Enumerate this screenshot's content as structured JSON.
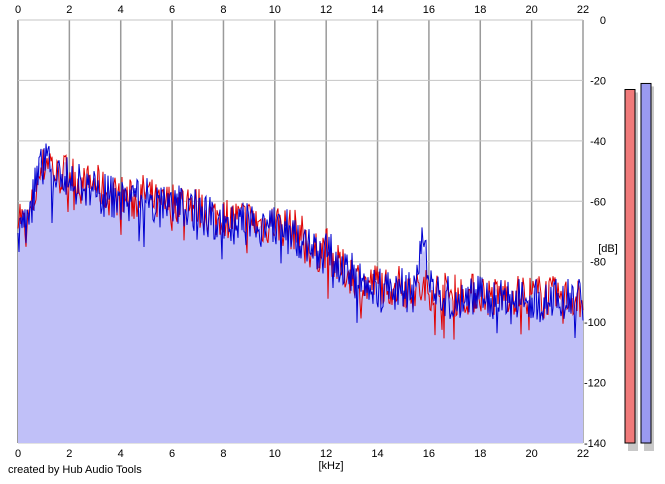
{
  "chart_data": {
    "type": "line",
    "title": "",
    "xlabel": "[kHz]",
    "ylabel": "[dB]",
    "x_ticks": [
      "0",
      "2",
      "4",
      "6",
      "8",
      "10",
      "12",
      "14",
      "16",
      "18",
      "20",
      "22"
    ],
    "y_ticks": [
      "0",
      "-20",
      "-40",
      "-60",
      "-80",
      "-100",
      "-120",
      "-140"
    ],
    "xlim": [
      0,
      22
    ],
    "ylim": [
      -140,
      0
    ],
    "grid": true,
    "legend": "none",
    "colors": {
      "fill": "#c0c0f8",
      "red_series": "#e00000",
      "blue_series": "#0000d0",
      "meter_left": "#f07a7a",
      "meter_right": "#9a9af0"
    },
    "series": [
      {
        "color": "red",
        "x": [
          0,
          0.3,
          0.6,
          0.9,
          1.2,
          1.5,
          2,
          2.5,
          3,
          3.5,
          4,
          4.5,
          5,
          5.5,
          6,
          6.5,
          7,
          7.5,
          8,
          8.5,
          9,
          9.5,
          10,
          10.5,
          11,
          11.5,
          12,
          12.5,
          13,
          13.5,
          14,
          14.5,
          15,
          15.5,
          16,
          16.5,
          17,
          17.5,
          18,
          18.5,
          19,
          19.5,
          20,
          20.5,
          21,
          21.5,
          22
        ],
        "y": [
          -62,
          -70,
          -60,
          -50,
          -45,
          -52,
          -50,
          -55,
          -54,
          -58,
          -58,
          -60,
          -57,
          -62,
          -60,
          -60,
          -62,
          -65,
          -65,
          -66,
          -66,
          -68,
          -67,
          -69,
          -70,
          -78,
          -75,
          -82,
          -84,
          -88,
          -87,
          -88,
          -88,
          -90,
          -89,
          -90,
          -91,
          -91,
          -90,
          -92,
          -91,
          -91,
          -91,
          -91,
          -92,
          -92,
          -92
        ]
      },
      {
        "color": "blue",
        "x": [
          0,
          0.3,
          0.6,
          0.9,
          1.2,
          1.5,
          2,
          2.5,
          3,
          3.5,
          4,
          4.5,
          5,
          5.5,
          6,
          6.5,
          7,
          7.5,
          8,
          8.5,
          9,
          9.5,
          10,
          10.5,
          11,
          11.5,
          12,
          12.5,
          13,
          13.5,
          14,
          14.5,
          15,
          15.5,
          15.8,
          16,
          16.5,
          17,
          17.5,
          18,
          18.5,
          19,
          19.5,
          20,
          20.5,
          21,
          21.5,
          22
        ],
        "y": [
          -63,
          -68,
          -58,
          -47,
          -48,
          -54,
          -52,
          -56,
          -55,
          -59,
          -59,
          -61,
          -58,
          -63,
          -61,
          -61,
          -63,
          -66,
          -67,
          -68,
          -67,
          -69,
          -68,
          -70,
          -72,
          -78,
          -76,
          -81,
          -84,
          -87,
          -88,
          -89,
          -89,
          -91,
          -69,
          -90,
          -91,
          -92,
          -92,
          -91,
          -92,
          -92,
          -92,
          -92,
          -93,
          -93,
          -93,
          -93
        ]
      }
    ],
    "level_meters": [
      {
        "color": "red",
        "value": -23
      },
      {
        "color": "blue",
        "value": -21
      }
    ]
  },
  "footer": {
    "credit": "created by Hub Audio Tools"
  }
}
